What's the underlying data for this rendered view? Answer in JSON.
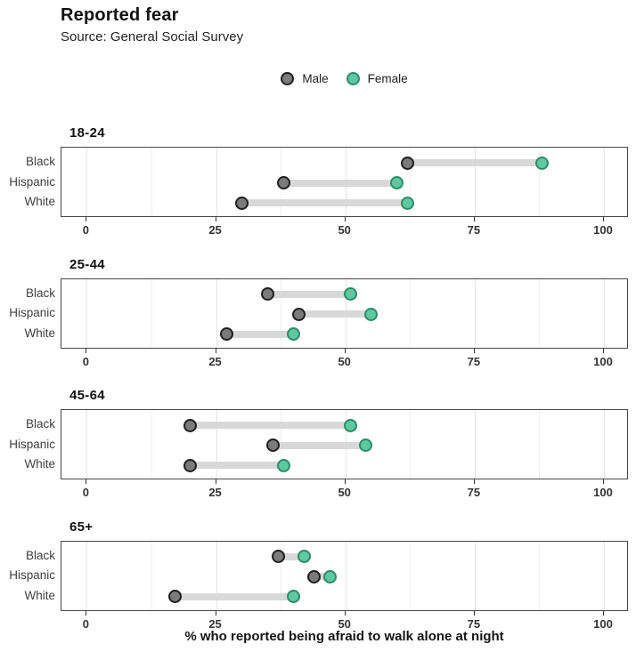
{
  "header": {
    "title": "Reported fear",
    "subtitle": "Source: General Social Survey"
  },
  "legend": {
    "items": [
      {
        "label": "Male",
        "fill": "#7B7B7B",
        "stroke": "#1F1F1F"
      },
      {
        "label": "Female",
        "fill": "#5EC8A3",
        "stroke": "#2E8C68"
      }
    ]
  },
  "chart_data": {
    "type": "dumbbell",
    "title": "Reported fear",
    "subtitle": "Source: General Social Survey",
    "xlabel": "% who reported being afraid to walk alone at night",
    "xlim": [
      0,
      100
    ],
    "xticks": [
      0,
      25,
      50,
      75,
      100
    ],
    "minor_gridlines": [
      12.5,
      37.5,
      62.5,
      87.5
    ],
    "grid": "vertical",
    "legend_position": "top-center",
    "categories": [
      "Black",
      "Hispanic",
      "White"
    ],
    "series_names": [
      "Male",
      "Female"
    ],
    "facets": [
      {
        "label": "18-24",
        "rows": [
          {
            "category": "Black",
            "male": 62,
            "female": 88
          },
          {
            "category": "Hispanic",
            "male": 38,
            "female": 60
          },
          {
            "category": "White",
            "male": 30,
            "female": 62
          }
        ]
      },
      {
        "label": "25-44",
        "rows": [
          {
            "category": "Black",
            "male": 35,
            "female": 51
          },
          {
            "category": "Hispanic",
            "male": 41,
            "female": 55
          },
          {
            "category": "White",
            "male": 27,
            "female": 40
          }
        ]
      },
      {
        "label": "45-64",
        "rows": [
          {
            "category": "Black",
            "male": 20,
            "female": 51
          },
          {
            "category": "Hispanic",
            "male": 36,
            "female": 54
          },
          {
            "category": "White",
            "male": 20,
            "female": 38
          }
        ]
      },
      {
        "label": "65+",
        "rows": [
          {
            "category": "Black",
            "male": 37,
            "female": 42
          },
          {
            "category": "Hispanic",
            "male": 44,
            "female": 47
          },
          {
            "category": "White",
            "male": 17,
            "female": 40
          }
        ]
      }
    ],
    "colors": {
      "male_fill": "#7B7B7B",
      "male_stroke": "#1F1F1F",
      "female_fill": "#5EC8A3",
      "female_stroke": "#2E8C68",
      "connector": "#D8D8D8"
    }
  }
}
